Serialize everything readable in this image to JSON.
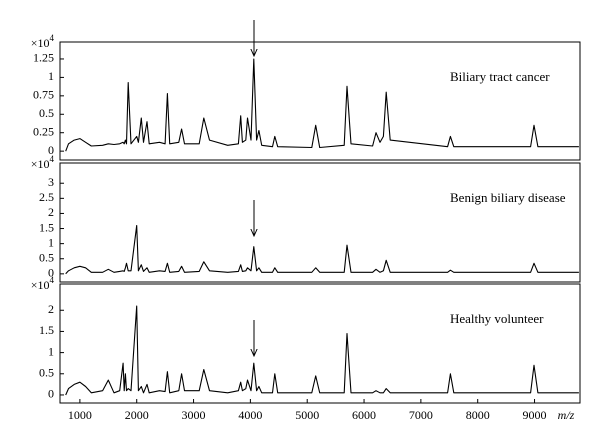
{
  "chart_data": [
    {
      "type": "line",
      "annotation": "Biliary tract cancer",
      "multiplier": {
        "base": "×10",
        "exponent": "4"
      },
      "color": "#000000",
      "xlim": [
        650,
        9800
      ],
      "ylim": [
        -0.12,
        1.48
      ],
      "yticks": [
        0,
        0.25,
        0.5,
        0.75,
        1,
        1.25
      ],
      "x": [
        750,
        800,
        900,
        1000,
        1100,
        1200,
        1400,
        1500,
        1600,
        1700,
        1760,
        1780,
        1800,
        1820,
        1850,
        1900,
        2000,
        2030,
        2080,
        2120,
        2180,
        2220,
        2400,
        2500,
        2540,
        2580,
        2740,
        2790,
        2840,
        3100,
        3180,
        3280,
        3600,
        3790,
        3830,
        3860,
        3920,
        3950,
        4010,
        4060,
        4110,
        4150,
        4200,
        4390,
        4430,
        4480,
        5080,
        5150,
        5220,
        5650,
        5700,
        5770,
        6150,
        6210,
        6280,
        6340,
        6390,
        6460,
        7470,
        7520,
        7580,
        8930,
        8990,
        9060,
        9780
      ],
      "values": [
        0,
        0.1,
        0.15,
        0.17,
        0.12,
        0.07,
        0.08,
        0.1,
        0.09,
        0.1,
        0.12,
        0.1,
        0.15,
        0.1,
        0.93,
        0.1,
        0.2,
        0.12,
        0.45,
        0.12,
        0.4,
        0.1,
        0.12,
        0.1,
        0.78,
        0.1,
        0.12,
        0.3,
        0.1,
        0.1,
        0.45,
        0.15,
        0.08,
        0.1,
        0.48,
        0.12,
        0.15,
        0.45,
        0.15,
        1.25,
        0.15,
        0.28,
        0.08,
        0.06,
        0.2,
        0.06,
        0.05,
        0.35,
        0.05,
        0.08,
        0.88,
        0.1,
        0.07,
        0.25,
        0.12,
        0.2,
        0.8,
        0.15,
        0.06,
        0.2,
        0.06,
        0.06,
        0.35,
        0.06,
        0.06
      ]
    },
    {
      "type": "line",
      "annotation": "Benign biliary disease",
      "multiplier": {
        "base": "×10",
        "exponent": "4"
      },
      "color": "#000000",
      "xlim": [
        650,
        9800
      ],
      "ylim": [
        -0.27,
        3.67
      ],
      "yticks": [
        0,
        0.5,
        1,
        1.5,
        2,
        2.5,
        3
      ],
      "x": [
        750,
        800,
        900,
        1000,
        1100,
        1200,
        1400,
        1500,
        1600,
        1700,
        1760,
        1780,
        1800,
        1820,
        1850,
        1900,
        2000,
        2030,
        2080,
        2120,
        2180,
        2220,
        2400,
        2500,
        2540,
        2580,
        2740,
        2790,
        2840,
        3100,
        3180,
        3280,
        3600,
        3790,
        3830,
        3860,
        3920,
        3950,
        4010,
        4060,
        4110,
        4150,
        4200,
        4390,
        4430,
        4480,
        5080,
        5150,
        5220,
        5650,
        5700,
        5770,
        6150,
        6210,
        6280,
        6340,
        6390,
        6460,
        7470,
        7520,
        7580,
        8930,
        8990,
        9060,
        9780
      ],
      "values": [
        0,
        0.1,
        0.2,
        0.25,
        0.2,
        0.05,
        0.05,
        0.15,
        0.05,
        0.08,
        0.1,
        0.08,
        0.2,
        0.35,
        0.1,
        0.1,
        1.6,
        0.1,
        0.3,
        0.08,
        0.2,
        0.05,
        0.1,
        0.08,
        0.35,
        0.05,
        0.08,
        0.25,
        0.05,
        0.08,
        0.4,
        0.1,
        0.05,
        0.08,
        0.3,
        0.08,
        0.1,
        0.2,
        0.1,
        0.9,
        0.1,
        0.2,
        0.05,
        0.05,
        0.2,
        0.05,
        0.05,
        0.2,
        0.05,
        0.05,
        0.95,
        0.05,
        0.05,
        0.15,
        0.05,
        0.1,
        0.45,
        0.05,
        0.05,
        0.12,
        0.05,
        0.05,
        0.35,
        0.05,
        0.05
      ]
    },
    {
      "type": "line",
      "annotation": "Healthy volunteer",
      "multiplier": {
        "base": "×10",
        "exponent": "4"
      },
      "color": "#000000",
      "xlim": [
        650,
        9800
      ],
      "ylim": [
        -0.19,
        2.62
      ],
      "yticks": [
        0,
        0.5,
        1,
        1.5,
        2
      ],
      "xticks": [
        1000,
        2000,
        3000,
        4000,
        5000,
        6000,
        7000,
        8000,
        9000
      ],
      "xlabel": "m/z",
      "x": [
        750,
        800,
        900,
        1000,
        1100,
        1200,
        1400,
        1500,
        1600,
        1700,
        1760,
        1780,
        1800,
        1820,
        1850,
        1900,
        2000,
        2030,
        2080,
        2120,
        2180,
        2220,
        2400,
        2500,
        2540,
        2580,
        2740,
        2790,
        2840,
        3100,
        3180,
        3280,
        3600,
        3790,
        3830,
        3860,
        3920,
        3950,
        4010,
        4060,
        4110,
        4150,
        4200,
        4390,
        4430,
        4480,
        5080,
        5150,
        5220,
        5650,
        5700,
        5770,
        6150,
        6210,
        6280,
        6340,
        6390,
        6460,
        7470,
        7520,
        7580,
        8930,
        8990,
        9060,
        9780
      ],
      "values": [
        0,
        0.15,
        0.25,
        0.3,
        0.2,
        0.05,
        0.1,
        0.35,
        0.05,
        0.1,
        0.75,
        0.1,
        0.5,
        0.1,
        0.15,
        0.1,
        2.1,
        0.1,
        0.2,
        0.05,
        0.25,
        0.05,
        0.1,
        0.08,
        0.55,
        0.05,
        0.1,
        0.5,
        0.1,
        0.1,
        0.6,
        0.1,
        0.05,
        0.1,
        0.3,
        0.1,
        0.15,
        0.35,
        0.1,
        0.75,
        0.1,
        0.2,
        0.05,
        0.05,
        0.5,
        0.05,
        0.05,
        0.45,
        0.05,
        0.05,
        1.45,
        0.05,
        0.05,
        0.1,
        0.05,
        0.05,
        0.15,
        0.05,
        0.05,
        0.5,
        0.05,
        0.05,
        0.7,
        0.05,
        0.05
      ]
    }
  ]
}
